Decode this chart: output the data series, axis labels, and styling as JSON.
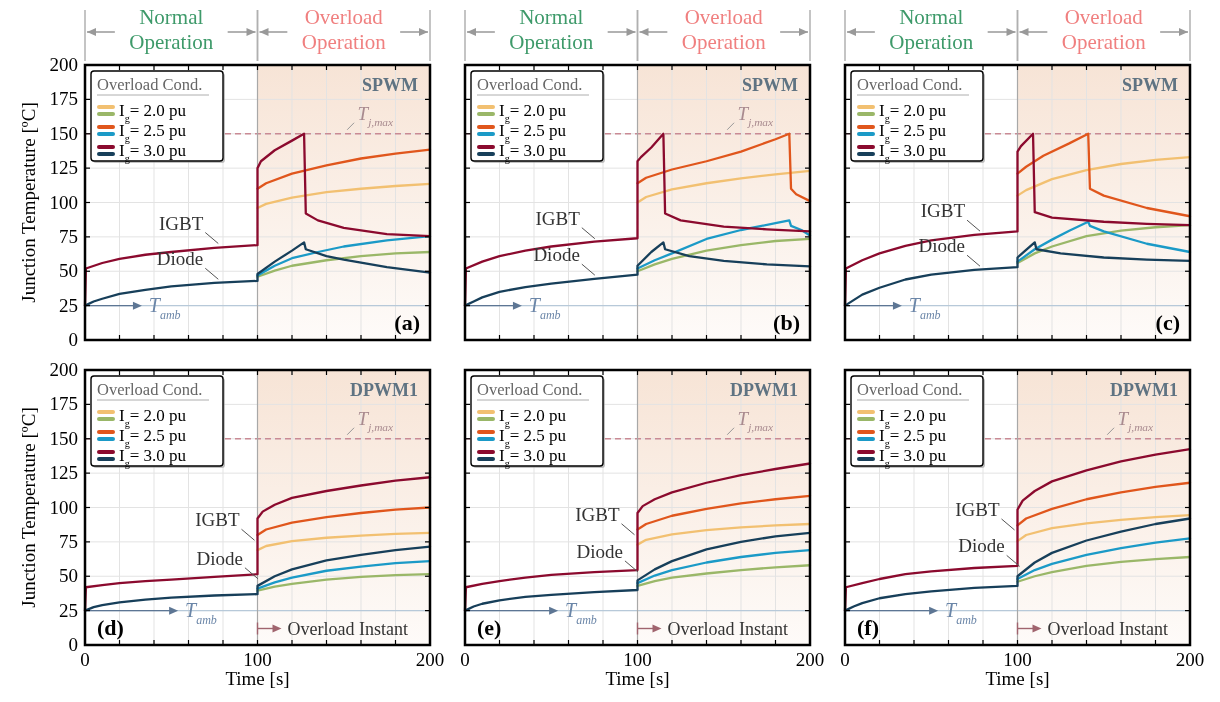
{
  "chart_data": [
    {
      "type": "line",
      "title": "SPWM",
      "subtitle": "(a)",
      "ylabel": "Junction Temperature [ºC]",
      "legend_title": "Overload Cond.",
      "legend": "top left",
      "grid": true,
      "tick_labels": "y",
      "line_style": "solid",
      "xlim": [
        0,
        200
      ],
      "ylim": [
        0,
        200
      ],
      "xticks": [
        0,
        {
          "value": 20,
          "label": null
        },
        {
          "value": 40,
          "label": null
        },
        {
          "value": 60,
          "label": null
        },
        {
          "value": 80,
          "label": null
        },
        100,
        {
          "value": 120,
          "label": null
        },
        {
          "value": 140,
          "label": null
        },
        {
          "value": 160,
          "label": null
        },
        {
          "value": 180,
          "label": null
        },
        200
      ],
      "yticks": [
        0,
        25,
        50,
        75,
        100,
        125,
        150,
        175,
        200
      ],
      "bands": [
        {
          "axis": "x",
          "from": 100,
          "to": 200,
          "color": "#f7e4d6"
        }
      ],
      "ref_lines": [
        {
          "axis": "y",
          "value": 150,
          "label": "T$_{j,max}$",
          "color": "#c98a94",
          "line_style": "dashed"
        },
        {
          "axis": "y",
          "value": 25,
          "label": "T$_{amb}$",
          "color": "#b7c9d9"
        },
        {
          "axis": "x",
          "value": 100,
          "color": "#a8a8a8"
        }
      ],
      "annotations": [
        "Normal Operation",
        "Overload Operation",
        {
          "text": "IGBT",
          "x": 79,
          "y": 68
        },
        {
          "text": "Diode",
          "x": 79,
          "y": 42
        }
      ],
      "series": [
        {
          "name": "I$_{g}$= 2.0 pu",
          "color": "#f2c071",
          "x": [
            100,
            105,
            120,
            140,
            160,
            180,
            200
          ],
          "values": [
            96,
            99,
            103.5,
            107.5,
            110,
            112,
            113.5
          ]
        },
        {
          "color": "#9ab768",
          "x": [
            100,
            110,
            120,
            140,
            160,
            180,
            200
          ],
          "values": [
            46,
            50.5,
            54,
            58,
            61,
            63,
            64
          ]
        },
        {
          "name": "I$_{g}$= 2.5 pu",
          "color": "#e0561c",
          "x": [
            100,
            105,
            120,
            140,
            160,
            180,
            200
          ],
          "values": [
            110,
            114,
            121,
            127,
            132,
            135.5,
            138.5
          ]
        },
        {
          "color": "#1b9ac7",
          "x": [
            100,
            110,
            120,
            135,
            150,
            175,
            200
          ],
          "values": [
            47,
            54,
            59.5,
            64,
            68,
            72.5,
            75.5
          ]
        },
        {
          "name": "I$_{g}$= 3.0 pu",
          "color": "#8b0a2e",
          "x": [
            0,
            0.5,
            10,
            20,
            35,
            50,
            75,
            100,
            100,
            102,
            110,
            120,
            127,
            128,
            135,
            150,
            175,
            200
          ],
          "values": [
            25,
            52,
            56,
            59,
            62,
            64,
            67,
            69,
            125,
            130,
            138,
            145,
            150,
            92,
            87,
            81.5,
            77,
            75.5
          ]
        },
        {
          "color": "#173f5a",
          "x": [
            0,
            5,
            10,
            20,
            35,
            50,
            75,
            100,
            100,
            110,
            120,
            127,
            128,
            140,
            150,
            175,
            200
          ],
          "values": [
            25,
            28,
            30,
            33.5,
            36.5,
            39,
            41.5,
            43,
            48,
            57,
            65,
            71,
            66,
            61,
            58.5,
            53,
            49
          ]
        }
      ]
    },
    {
      "type": "line",
      "title": "SPWM",
      "subtitle": "(b)",
      "legend_title": "Overload Cond.",
      "legend": "top left",
      "grid": true,
      "tick_labels": false,
      "line_style": "solid",
      "xlim": [
        0,
        200
      ],
      "ylim": [
        0,
        200
      ],
      "xticks": [
        0,
        {
          "value": 20,
          "label": null
        },
        {
          "value": 40,
          "label": null
        },
        {
          "value": 60,
          "label": null
        },
        {
          "value": 80,
          "label": null
        },
        100,
        {
          "value": 120,
          "label": null
        },
        {
          "value": 140,
          "label": null
        },
        {
          "value": 160,
          "label": null
        },
        {
          "value": 180,
          "label": null
        },
        200
      ],
      "yticks": [
        0,
        25,
        50,
        75,
        100,
        125,
        150,
        175,
        200
      ],
      "bands": [
        {
          "axis": "x",
          "from": 100,
          "to": 200,
          "color": "#f7e4d6"
        }
      ],
      "ref_lines": [
        {
          "axis": "y",
          "value": 150,
          "label": "T$_{j,max}$",
          "color": "#c98a94",
          "line_style": "dashed"
        },
        {
          "axis": "y",
          "value": 25,
          "label": "T$_{amb}$",
          "color": "#b7c9d9"
        },
        {
          "axis": "x",
          "value": 100,
          "color": "#a8a8a8"
        }
      ],
      "annotations": [
        "Normal Operation",
        "Overload Operation",
        {
          "text": "IGBT",
          "x": 77,
          "y": 71.5
        },
        {
          "text": "Diode",
          "x": 77,
          "y": 45
        }
      ],
      "series": [
        {
          "name": "I$_{g}$= 2.0 pu",
          "color": "#f2c071",
          "x": [
            100,
            105,
            120,
            140,
            160,
            180,
            200
          ],
          "values": [
            100,
            104,
            109.5,
            114,
            117.5,
            120.5,
            123
          ]
        },
        {
          "color": "#9ab768",
          "x": [
            100,
            110,
            120,
            140,
            160,
            180,
            200
          ],
          "values": [
            50,
            55,
            59,
            65,
            69,
            72,
            73.5
          ]
        },
        {
          "name": "I$_{g}$= 2.5 pu",
          "color": "#e0561c",
          "x": [
            100,
            105,
            120,
            140,
            160,
            180,
            188,
            189,
            192,
            200
          ],
          "values": [
            114,
            118,
            124,
            130,
            137,
            146,
            150,
            110,
            106,
            101
          ]
        },
        {
          "color": "#1b9ac7",
          "x": [
            100,
            110,
            120,
            140,
            160,
            180,
            188,
            189,
            195,
            200
          ],
          "values": [
            52,
            58,
            63,
            73.5,
            80,
            85,
            87,
            83,
            80,
            76
          ]
        },
        {
          "name": "I$_{g}$= 3.0 pu",
          "color": "#8b0a2e",
          "x": [
            0,
            0.5,
            10,
            20,
            35,
            50,
            75,
            100,
            100,
            102,
            108,
            115,
            116,
            125,
            150,
            175,
            200
          ],
          "values": [
            25,
            52,
            57,
            61,
            65,
            68,
            71.5,
            74,
            130,
            133,
            140,
            150,
            92,
            87,
            82.5,
            80.5,
            79
          ]
        },
        {
          "color": "#173f5a",
          "x": [
            0,
            5,
            10,
            20,
            35,
            50,
            75,
            100,
            100,
            108,
            115,
            116,
            130,
            150,
            175,
            200
          ],
          "values": [
            25,
            28,
            31,
            35,
            38.5,
            41,
            44.5,
            47.5,
            54,
            64,
            71,
            66,
            61,
            57.5,
            55,
            53.5
          ]
        }
      ]
    },
    {
      "type": "line",
      "title": "SPWM",
      "subtitle": "(c)",
      "legend_title": "Overload Cond.",
      "legend": "top left",
      "grid": true,
      "tick_labels": false,
      "line_style": "solid",
      "xlim": [
        0,
        200
      ],
      "ylim": [
        0,
        200
      ],
      "xticks": [
        0,
        {
          "value": 20,
          "label": null
        },
        {
          "value": 40,
          "label": null
        },
        {
          "value": 60,
          "label": null
        },
        {
          "value": 80,
          "label": null
        },
        100,
        {
          "value": 120,
          "label": null
        },
        {
          "value": 140,
          "label": null
        },
        {
          "value": 160,
          "label": null
        },
        {
          "value": 180,
          "label": null
        },
        200
      ],
      "yticks": [
        0,
        25,
        50,
        75,
        100,
        125,
        150,
        175,
        200
      ],
      "bands": [
        {
          "axis": "x",
          "from": 100,
          "to": 200,
          "color": "#f7e4d6"
        }
      ],
      "ref_lines": [
        {
          "axis": "y",
          "value": 150,
          "color": "#c98a94",
          "line_style": "dashed"
        },
        {
          "axis": "y",
          "value": 25,
          "label": "T$_{amb}$",
          "color": "#b7c9d9"
        },
        {
          "axis": "x",
          "value": 100,
          "color": "#a8a8a8"
        }
      ],
      "annotations": [
        "Normal Operation",
        "Overload Operation",
        {
          "text": "IGBT",
          "x": 80,
          "y": 77
        },
        {
          "text": "Diode",
          "x": 80,
          "y": 51.5
        }
      ],
      "series": [
        {
          "name": "I$_{g}$= 2.0 pu",
          "color": "#f2c071",
          "x": [
            100,
            105,
            120,
            140,
            160,
            180,
            200
          ],
          "values": [
            105,
            109,
            117,
            123.5,
            128,
            131,
            133
          ]
        },
        {
          "color": "#9ab768",
          "x": [
            100,
            110,
            120,
            140,
            160,
            180,
            200
          ],
          "values": [
            56,
            63,
            68,
            75.5,
            79.5,
            82,
            83.5
          ]
        },
        {
          "name": "I$_{g}$= 2.5 pu",
          "color": "#e0561c",
          "x": [
            100,
            105,
            115,
            130,
            141,
            142,
            150,
            175,
            200
          ],
          "values": [
            121,
            126,
            134,
            143,
            150,
            110,
            105,
            96,
            90
          ]
        },
        {
          "color": "#1b9ac7",
          "x": [
            100,
            110,
            120,
            130,
            141,
            142,
            150,
            175,
            200
          ],
          "values": [
            57,
            66,
            73,
            79.5,
            86,
            83,
            79,
            70,
            64
          ]
        },
        {
          "name": "I$_{g}$= 3.0 pu",
          "color": "#8b0a2e",
          "x": [
            0,
            0.5,
            10,
            20,
            35,
            50,
            75,
            100,
            100,
            102,
            109,
            110,
            120,
            150,
            175,
            200
          ],
          "values": [
            25,
            52,
            58,
            63,
            68.5,
            72.5,
            76.5,
            79,
            137,
            141,
            150,
            93,
            89,
            86,
            84.5,
            83.5
          ]
        },
        {
          "color": "#173f5a",
          "x": [
            0,
            5,
            10,
            20,
            35,
            50,
            75,
            100,
            100,
            105,
            110,
            111,
            125,
            150,
            175,
            200
          ],
          "values": [
            25,
            29,
            33,
            38,
            44,
            47.5,
            51,
            53,
            60,
            65.5,
            71,
            66,
            63,
            60,
            58.5,
            57.5
          ]
        }
      ]
    },
    {
      "type": "line",
      "title": "DPWM1",
      "subtitle": "(d)",
      "xlabel": "Time [s]",
      "ylabel": "Junction Temperature [ºC]",
      "legend_title": "Overload Cond.",
      "legend": "top left",
      "grid": true,
      "line_style": "solid",
      "xlim": [
        0,
        200
      ],
      "ylim": [
        0,
        200
      ],
      "xticks": [
        0,
        {
          "value": 20,
          "label": null
        },
        {
          "value": 40,
          "label": null
        },
        {
          "value": 60,
          "label": null
        },
        {
          "value": 80,
          "label": null
        },
        100,
        {
          "value": 120,
          "label": null
        },
        {
          "value": 140,
          "label": null
        },
        {
          "value": 160,
          "label": null
        },
        {
          "value": 180,
          "label": null
        },
        200
      ],
      "yticks": [
        0,
        25,
        50,
        75,
        100,
        125,
        150,
        175,
        200
      ],
      "bands": [
        {
          "axis": "x",
          "from": 100,
          "to": 200,
          "color": "#f7e4d6"
        }
      ],
      "ref_lines": [
        {
          "axis": "y",
          "value": 150,
          "label": "T$_{j,max}$",
          "color": "#c98a94",
          "line_style": "dashed"
        },
        {
          "axis": "y",
          "value": 25,
          "label": "T$_{amb}$",
          "color": "#b7c9d9"
        },
        {
          "axis": "x",
          "value": 100,
          "color": "#a8a8a8"
        }
      ],
      "annotations": [
        {
          "text": "IGBT",
          "x": 100,
          "y": 74
        },
        {
          "text": "Diode",
          "x": 102,
          "y": 46
        },
        {
          "text": "Overload Instant",
          "x": 100,
          "y": 12
        }
      ],
      "series": [
        {
          "name": "I$_{g}$= 2.0 pu",
          "color": "#f2c071",
          "x": [
            100,
            105,
            120,
            140,
            160,
            180,
            200
          ],
          "values": [
            69,
            72,
            75.5,
            78,
            79.5,
            80.8,
            81.5
          ]
        },
        {
          "color": "#9ab768",
          "x": [
            100,
            110,
            120,
            140,
            160,
            180,
            200
          ],
          "values": [
            39.5,
            42.5,
            44.5,
            47.5,
            49.5,
            50.8,
            51.5
          ]
        },
        {
          "name": "I$_{g}$= 2.5 pu",
          "color": "#e0561c",
          "x": [
            100,
            105,
            120,
            140,
            160,
            180,
            200
          ],
          "values": [
            80,
            84,
            89,
            93,
            96,
            98.5,
            100
          ]
        },
        {
          "color": "#1b9ac7",
          "x": [
            100,
            110,
            120,
            140,
            160,
            180,
            200
          ],
          "values": [
            41,
            45.5,
            49,
            54,
            57,
            59.5,
            61
          ]
        },
        {
          "name": "I$_{g}$= 3.0 pu",
          "color": "#8b0a2e",
          "x": [
            0,
            0.5,
            10,
            20,
            35,
            50,
            75,
            100,
            100,
            103,
            110,
            120,
            140,
            160,
            180,
            200
          ],
          "values": [
            25,
            42,
            43.5,
            45,
            46.5,
            47.5,
            49.5,
            51.5,
            92,
            97,
            102,
            107,
            112,
            116,
            119.5,
            122
          ]
        },
        {
          "color": "#173f5a",
          "x": [
            0,
            5,
            10,
            20,
            35,
            50,
            75,
            100,
            100,
            110,
            120,
            140,
            160,
            180,
            200
          ],
          "values": [
            25,
            27.5,
            29,
            31,
            33,
            34.5,
            36,
            37,
            43,
            50,
            55,
            61.5,
            65.5,
            69,
            71.5
          ]
        }
      ]
    },
    {
      "type": "line",
      "title": "DPWM1",
      "subtitle": "(e)",
      "xlabel": "Time [s]",
      "legend_title": "Overload Cond.",
      "legend": "top left",
      "grid": true,
      "tick_labels": "x",
      "line_style": "solid",
      "xlim": [
        0,
        200
      ],
      "ylim": [
        0,
        200
      ],
      "xticks": [
        0,
        {
          "value": 20,
          "label": null
        },
        {
          "value": 40,
          "label": null
        },
        {
          "value": 60,
          "label": null
        },
        {
          "value": 80,
          "label": null
        },
        100,
        {
          "value": 120,
          "label": null
        },
        {
          "value": 140,
          "label": null
        },
        {
          "value": 160,
          "label": null
        },
        {
          "value": 180,
          "label": null
        },
        200
      ],
      "yticks": [
        0,
        25,
        50,
        75,
        100,
        125,
        150,
        175,
        200
      ],
      "bands": [
        {
          "axis": "x",
          "from": 100,
          "to": 200,
          "color": "#f7e4d6"
        }
      ],
      "ref_lines": [
        {
          "axis": "y",
          "value": 150,
          "label": "T$_{j,max}$",
          "color": "#c98a94",
          "line_style": "dashed"
        },
        {
          "axis": "y",
          "value": 25,
          "label": "T$_{amb}$",
          "color": "#b7c9d9"
        },
        {
          "axis": "x",
          "value": 100,
          "color": "#a8a8a8"
        }
      ],
      "annotations": [
        {
          "text": "IGBT",
          "x": 100,
          "y": 78
        },
        {
          "text": "Diode",
          "x": 102,
          "y": 51
        },
        {
          "text": "Overload Instant",
          "x": 100,
          "y": 12
        }
      ],
      "series": [
        {
          "name": "I$_{g}$= 2.0 pu",
          "color": "#f2c071",
          "x": [
            100,
            105,
            120,
            140,
            160,
            180,
            200
          ],
          "values": [
            73,
            76.5,
            80.5,
            83.5,
            85.5,
            87,
            88
          ]
        },
        {
          "color": "#9ab768",
          "x": [
            100,
            110,
            120,
            140,
            160,
            180,
            200
          ],
          "values": [
            43,
            46.5,
            49,
            52,
            54.5,
            56.5,
            58
          ]
        },
        {
          "name": "I$_{g}$= 2.5 pu",
          "color": "#e0561c",
          "x": [
            100,
            105,
            120,
            140,
            160,
            180,
            200
          ],
          "values": [
            84,
            88,
            94,
            99,
            103,
            106,
            108.5
          ]
        },
        {
          "color": "#1b9ac7",
          "x": [
            100,
            110,
            120,
            140,
            160,
            180,
            200
          ],
          "values": [
            45,
            50.5,
            54.5,
            60,
            64,
            67,
            69
          ]
        },
        {
          "name": "I$_{g}$= 3.0 pu",
          "color": "#8b0a2e",
          "x": [
            0,
            0.5,
            10,
            20,
            35,
            50,
            75,
            100,
            100,
            103,
            110,
            120,
            140,
            160,
            180,
            200
          ],
          "values": [
            25,
            42,
            44.5,
            46.5,
            49,
            51,
            53,
            54.5,
            96,
            101,
            106,
            111,
            118,
            123.5,
            128,
            132
          ]
        },
        {
          "color": "#173f5a",
          "x": [
            0,
            5,
            10,
            20,
            35,
            50,
            75,
            100,
            100,
            110,
            120,
            140,
            160,
            180,
            200
          ],
          "values": [
            25,
            28,
            30,
            32.5,
            35,
            36.5,
            38.5,
            40,
            47,
            55,
            61,
            69.5,
            75,
            79,
            81.5
          ]
        }
      ]
    },
    {
      "type": "line",
      "title": "DPWM1",
      "subtitle": "(f)",
      "xlabel": "Time [s]",
      "legend_title": "Overload Cond.",
      "legend": "top left",
      "grid": true,
      "tick_labels": "x",
      "line_style": "solid",
      "xlim": [
        0,
        200
      ],
      "ylim": [
        0,
        200
      ],
      "xticks": [
        0,
        {
          "value": 20,
          "label": null
        },
        {
          "value": 40,
          "label": null
        },
        {
          "value": 60,
          "label": null
        },
        {
          "value": 80,
          "label": null
        },
        100,
        {
          "value": 120,
          "label": null
        },
        {
          "value": 140,
          "label": null
        },
        {
          "value": 160,
          "label": null
        },
        {
          "value": 180,
          "label": null
        },
        200
      ],
      "yticks": [
        0,
        25,
        50,
        75,
        100,
        125,
        150,
        175,
        200
      ],
      "bands": [
        {
          "axis": "x",
          "from": 100,
          "to": 200,
          "color": "#f7e4d6"
        }
      ],
      "ref_lines": [
        {
          "axis": "y",
          "value": 150,
          "label": "T$_{j,max}$",
          "color": "#c98a94",
          "line_style": "dashed"
        },
        {
          "axis": "y",
          "value": 25,
          "label": "T$_{amb}$",
          "color": "#b7c9d9"
        },
        {
          "axis": "x",
          "value": 100,
          "color": "#a8a8a8"
        }
      ],
      "annotations": [
        {
          "text": "IGBT",
          "x": 100,
          "y": 81.5
        },
        {
          "text": "Diode",
          "x": 103,
          "y": 55
        },
        {
          "text": "Overload Instant",
          "x": 100,
          "y": 12
        }
      ],
      "series": [
        {
          "name": "I$_{g}$= 2.0 pu",
          "color": "#f2c071",
          "x": [
            100,
            105,
            120,
            140,
            160,
            180,
            200
          ],
          "values": [
            75.5,
            80,
            85,
            88.5,
            91,
            93,
            94.5
          ]
        },
        {
          "color": "#9ab768",
          "x": [
            100,
            110,
            120,
            140,
            160,
            180,
            200
          ],
          "values": [
            46,
            50,
            53,
            57.5,
            60.5,
            62.5,
            64
          ]
        },
        {
          "name": "I$_{g}$= 2.5 pu",
          "color": "#e0561c",
          "x": [
            100,
            105,
            120,
            140,
            160,
            180,
            200
          ],
          "values": [
            87,
            92,
            99,
            106,
            111,
            115,
            118
          ]
        },
        {
          "color": "#1b9ac7",
          "x": [
            100,
            110,
            120,
            140,
            160,
            180,
            200
          ],
          "values": [
            48,
            54.5,
            59,
            65.5,
            70.5,
            74.5,
            77.5
          ]
        },
        {
          "name": "I$_{g}$= 3.0 pu",
          "color": "#8b0a2e",
          "x": [
            0,
            0.5,
            10,
            20,
            35,
            50,
            75,
            100,
            100,
            103,
            110,
            120,
            140,
            160,
            180,
            200
          ],
          "values": [
            25,
            42,
            45,
            48,
            51.5,
            53.5,
            56,
            57.5,
            98.5,
            105,
            112,
            119,
            127,
            133.5,
            138.5,
            142.5
          ]
        },
        {
          "color": "#173f5a",
          "x": [
            0,
            5,
            10,
            20,
            35,
            50,
            75,
            100,
            100,
            110,
            120,
            140,
            160,
            180,
            200
          ],
          "values": [
            25,
            28,
            30.5,
            34,
            37,
            39,
            41.5,
            43,
            50,
            60,
            67,
            76,
            82.5,
            88,
            92
          ]
        }
      ]
    }
  ]
}
